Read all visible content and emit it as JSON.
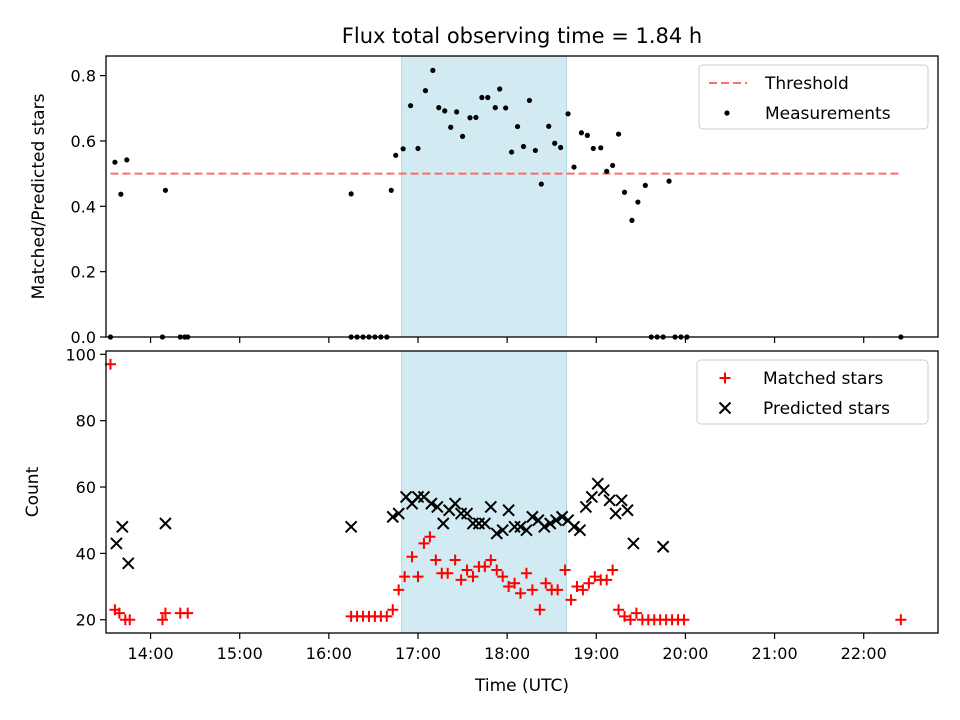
{
  "figure": {
    "title": "Flux total observing time = 1.84 h"
  },
  "chart_data": [
    {
      "type": "scatter",
      "panel": "top",
      "title": "Flux total observing time = 1.84 h",
      "ylabel": "Matched/Predicted stars",
      "xlabel": "",
      "xlim": [
        "13:30",
        "22:50"
      ],
      "ylim": [
        0,
        0.86
      ],
      "yticks": [
        "0.0",
        "0.2",
        "0.4",
        "0.6",
        "0.8"
      ],
      "highlight_span": {
        "start": "16:49",
        "end": "18:40",
        "color": "#add8e6"
      },
      "legend_position": "upper right",
      "threshold": {
        "name": "Threshold",
        "value": 0.5,
        "x_start": "13:33",
        "x_end": "22:25",
        "color": "#ff6b6b",
        "style": "dashed"
      },
      "series": [
        {
          "name": "Measurements",
          "marker": "dot",
          "color": "#000000",
          "points": [
            [
              "13:33",
              0.0
            ],
            [
              "13:36",
              0.535
            ],
            [
              "13:40",
              0.437
            ],
            [
              "13:44",
              0.542
            ],
            [
              "14:08",
              0.0
            ],
            [
              "14:10",
              0.449
            ],
            [
              "14:20",
              0.0
            ],
            [
              "14:23",
              0.0
            ],
            [
              "14:25",
              0.0
            ],
            [
              "16:15",
              0.438
            ],
            [
              "16:15",
              0.0
            ],
            [
              "16:19",
              0.0
            ],
            [
              "16:23",
              0.0
            ],
            [
              "16:27",
              0.0
            ],
            [
              "16:31",
              0.0
            ],
            [
              "16:35",
              0.0
            ],
            [
              "16:39",
              0.0
            ],
            [
              "16:42",
              0.449
            ],
            [
              "16:45",
              0.556
            ],
            [
              "16:50",
              0.576
            ],
            [
              "16:55",
              0.708
            ],
            [
              "17:00",
              0.577
            ],
            [
              "17:05",
              0.754
            ],
            [
              "17:10",
              0.816
            ],
            [
              "17:14",
              0.702
            ],
            [
              "17:18",
              0.692
            ],
            [
              "17:22",
              0.642
            ],
            [
              "17:26",
              0.689
            ],
            [
              "17:30",
              0.614
            ],
            [
              "17:35",
              0.671
            ],
            [
              "17:39",
              0.672
            ],
            [
              "17:43",
              0.733
            ],
            [
              "17:47",
              0.733
            ],
            [
              "17:52",
              0.702
            ],
            [
              "17:55",
              0.759
            ],
            [
              "17:59",
              0.701
            ],
            [
              "18:03",
              0.566
            ],
            [
              "18:07",
              0.644
            ],
            [
              "18:11",
              0.583
            ],
            [
              "18:15",
              0.724
            ],
            [
              "18:19",
              0.571
            ],
            [
              "18:23",
              0.468
            ],
            [
              "18:28",
              0.645
            ],
            [
              "18:32",
              0.593
            ],
            [
              "18:36",
              0.58
            ],
            [
              "18:41",
              0.683
            ],
            [
              "18:45",
              0.52
            ],
            [
              "18:50",
              0.625
            ],
            [
              "18:54",
              0.617
            ],
            [
              "18:58",
              0.577
            ],
            [
              "19:03",
              0.579
            ],
            [
              "19:07",
              0.507
            ],
            [
              "19:11",
              0.525
            ],
            [
              "19:15",
              0.621
            ],
            [
              "19:19",
              0.443
            ],
            [
              "19:24",
              0.357
            ],
            [
              "19:28",
              0.413
            ],
            [
              "19:33",
              0.464
            ],
            [
              "19:37",
              0.0
            ],
            [
              "19:41",
              0.0
            ],
            [
              "19:45",
              0.0
            ],
            [
              "19:49",
              0.477
            ],
            [
              "19:53",
              0.0
            ],
            [
              "19:57",
              0.0
            ],
            [
              "20:01",
              0.0
            ],
            [
              "22:25",
              0.0
            ]
          ]
        }
      ]
    },
    {
      "type": "scatter",
      "panel": "bottom",
      "xlabel": "Time (UTC)",
      "ylabel": "Count",
      "xlim": [
        "13:30",
        "22:50"
      ],
      "ylim": [
        16,
        101
      ],
      "yticks": [
        "20",
        "40",
        "60",
        "80",
        "100"
      ],
      "xticks": [
        "14:00",
        "15:00",
        "16:00",
        "17:00",
        "18:00",
        "19:00",
        "20:00",
        "21:00",
        "22:00"
      ],
      "highlight_span": {
        "start": "16:49",
        "end": "18:40",
        "color": "#add8e6"
      },
      "legend_position": "upper right",
      "series": [
        {
          "name": "Matched stars",
          "marker": "plus",
          "color": "#ff0000",
          "points": [
            [
              "13:33",
              97
            ],
            [
              "13:36",
              23
            ],
            [
              "13:39",
              22
            ],
            [
              "13:43",
              20
            ],
            [
              "13:46",
              20
            ],
            [
              "14:08",
              20
            ],
            [
              "14:10",
              22
            ],
            [
              "14:20",
              22
            ],
            [
              "14:25",
              22
            ],
            [
              "16:15",
              21
            ],
            [
              "16:19",
              21
            ],
            [
              "16:23",
              21
            ],
            [
              "16:27",
              21
            ],
            [
              "16:31",
              21
            ],
            [
              "16:35",
              21
            ],
            [
              "16:39",
              21
            ],
            [
              "16:43",
              23
            ],
            [
              "16:47",
              29
            ],
            [
              "16:51",
              33
            ],
            [
              "16:56",
              39
            ],
            [
              "17:00",
              33
            ],
            [
              "17:04",
              43
            ],
            [
              "17:08",
              45
            ],
            [
              "17:12",
              38
            ],
            [
              "17:16",
              34
            ],
            [
              "17:20",
              34
            ],
            [
              "17:25",
              38
            ],
            [
              "17:29",
              32
            ],
            [
              "17:33",
              35
            ],
            [
              "17:37",
              33
            ],
            [
              "17:41",
              36
            ],
            [
              "17:45",
              36
            ],
            [
              "17:49",
              38
            ],
            [
              "17:53",
              35
            ],
            [
              "17:57",
              33
            ],
            [
              "18:01",
              30
            ],
            [
              "18:05",
              31
            ],
            [
              "18:09",
              28
            ],
            [
              "18:13",
              34
            ],
            [
              "18:17",
              29
            ],
            [
              "18:22",
              23
            ],
            [
              "18:26",
              31
            ],
            [
              "18:30",
              29
            ],
            [
              "18:34",
              29
            ],
            [
              "18:39",
              35
            ],
            [
              "18:43",
              26
            ],
            [
              "18:47",
              30
            ],
            [
              "18:51",
              29
            ],
            [
              "18:55",
              31
            ],
            [
              "18:59",
              33
            ],
            [
              "19:03",
              32
            ],
            [
              "19:07",
              32
            ],
            [
              "19:11",
              35
            ],
            [
              "19:15",
              23
            ],
            [
              "19:19",
              21
            ],
            [
              "19:23",
              20
            ],
            [
              "19:27",
              22
            ],
            [
              "19:31",
              20
            ],
            [
              "19:35",
              20
            ],
            [
              "19:39",
              20
            ],
            [
              "19:43",
              20
            ],
            [
              "19:47",
              20
            ],
            [
              "19:51",
              20
            ],
            [
              "19:55",
              20
            ],
            [
              "19:59",
              20
            ],
            [
              "22:25",
              20
            ]
          ]
        },
        {
          "name": "Predicted stars",
          "marker": "x",
          "color": "#000000",
          "points": [
            [
              "13:37",
              43
            ],
            [
              "13:41",
              48
            ],
            [
              "13:45",
              37
            ],
            [
              "14:10",
              49
            ],
            [
              "16:15",
              48
            ],
            [
              "16:43",
              51
            ],
            [
              "16:47",
              52
            ],
            [
              "16:52",
              57
            ],
            [
              "16:56",
              55
            ],
            [
              "17:00",
              57
            ],
            [
              "17:04",
              57
            ],
            [
              "17:09",
              55
            ],
            [
              "17:13",
              54
            ],
            [
              "17:17",
              49
            ],
            [
              "17:21",
              53
            ],
            [
              "17:25",
              55
            ],
            [
              "17:29",
              52
            ],
            [
              "17:33",
              52
            ],
            [
              "17:37",
              49
            ],
            [
              "17:41",
              49
            ],
            [
              "17:45",
              49
            ],
            [
              "17:49",
              54
            ],
            [
              "17:53",
              46
            ],
            [
              "17:57",
              47
            ],
            [
              "18:01",
              53
            ],
            [
              "18:05",
              48
            ],
            [
              "18:09",
              48
            ],
            [
              "18:13",
              47
            ],
            [
              "18:17",
              51
            ],
            [
              "18:21",
              50
            ],
            [
              "18:25",
              48
            ],
            [
              "18:29",
              49
            ],
            [
              "18:33",
              50
            ],
            [
              "18:37",
              51
            ],
            [
              "18:41",
              50
            ],
            [
              "18:45",
              48
            ],
            [
              "18:49",
              47
            ],
            [
              "18:53",
              54
            ],
            [
              "18:57",
              57
            ],
            [
              "19:01",
              61
            ],
            [
              "19:05",
              59
            ],
            [
              "19:09",
              56
            ],
            [
              "19:13",
              52
            ],
            [
              "19:17",
              56
            ],
            [
              "19:21",
              53
            ],
            [
              "19:25",
              43
            ],
            [
              "19:45",
              42
            ]
          ]
        }
      ]
    }
  ]
}
